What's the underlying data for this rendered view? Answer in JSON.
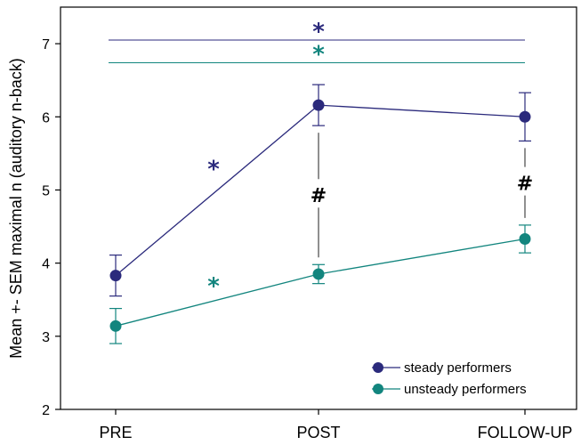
{
  "chart_data": {
    "type": "line",
    "categories": [
      "PRE",
      "POST",
      "FOLLOW-UP"
    ],
    "ylabel": "Mean +- SEM maximal n (auditory n-back)",
    "ylim": [
      2,
      7.5
    ],
    "yticks": [
      2,
      3,
      4,
      5,
      6,
      7
    ],
    "grid": false,
    "legend_position": "bottom-right",
    "series": [
      {
        "name": "steady performers",
        "color": "#2b2a7c",
        "values": [
          3.83,
          6.16,
          6.0
        ],
        "sem": [
          0.28,
          0.28,
          0.33
        ]
      },
      {
        "name": "unsteady performers",
        "color": "#12857e",
        "values": [
          3.14,
          3.85,
          4.33
        ],
        "sem": [
          0.24,
          0.13,
          0.19
        ]
      }
    ],
    "annotations": {
      "overall_lines": [
        {
          "series": 0,
          "y": 7.05,
          "label": "*"
        },
        {
          "series": 1,
          "y": 6.74,
          "label": "*"
        }
      ],
      "segment_stars": [
        {
          "series": 0,
          "between": [
            0,
            1
          ],
          "y": 5.35,
          "label": "*"
        },
        {
          "series": 1,
          "between": [
            0,
            1
          ],
          "y": 3.75,
          "label": "*"
        }
      ],
      "group_differences": [
        {
          "category": 1,
          "label": "#"
        },
        {
          "category": 2,
          "label": "#"
        }
      ]
    }
  }
}
